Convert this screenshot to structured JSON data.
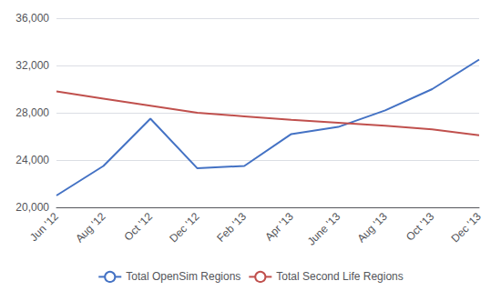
{
  "chart_data": {
    "type": "line",
    "categories": [
      "Jun '12",
      "Aug '12",
      "Oct '12",
      "Dec '12",
      "Feb '13",
      "Apr '13",
      "June '13",
      "Aug '13",
      "Oct '13",
      "Dec '13"
    ],
    "series": [
      {
        "name": "Total OpenSim Regions",
        "color": "#4472C4",
        "values": [
          21000,
          23500,
          27500,
          23300,
          23500,
          26200,
          26800,
          28200,
          30000,
          32500
        ]
      },
      {
        "name": "Total Second Life Regions",
        "color": "#C0504D",
        "values": [
          29800,
          29200,
          28600,
          28000,
          27700,
          27400,
          27150,
          26900,
          26600,
          26100
        ]
      }
    ],
    "ylim": [
      20000,
      36000
    ],
    "yticks": [
      {
        "value": 20000,
        "label": "20,000"
      },
      {
        "value": 24000,
        "label": "24,000"
      },
      {
        "value": 28000,
        "label": "28,000"
      },
      {
        "value": 32000,
        "label": "32,000"
      },
      {
        "value": 36000,
        "label": "36,000"
      }
    ],
    "grid": true,
    "legend": "bottom"
  }
}
